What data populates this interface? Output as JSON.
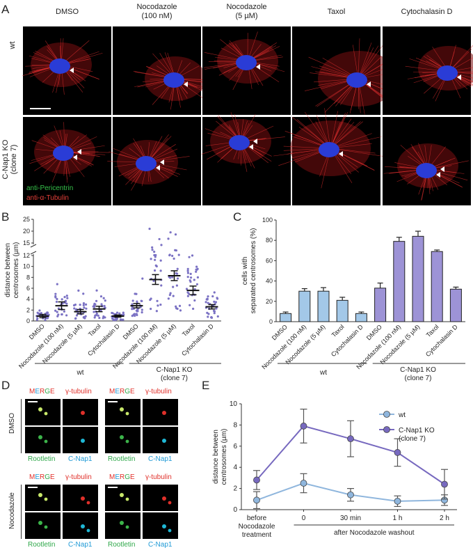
{
  "panel_a": {
    "letter": "A",
    "columns": [
      "DMSO",
      "Nocodazole\n(100 nM)",
      "Nocodazole\n(5 µM)",
      "Taxol",
      "Cytochalasin D"
    ],
    "rows": [
      "wt",
      "C-Nap1 KO\n(clone 7)"
    ],
    "legend": [
      "anti-Pericentrin",
      "anti-α-Tubulin"
    ],
    "legend_colors": [
      "#36c24a",
      "#e8403a"
    ]
  },
  "panel_b": {
    "letter": "B",
    "ylabel": "distance between\ncentrosomes (µm)",
    "group_wt": "wt",
    "group_ko": "C-Nap1 KO\n(clone 7)"
  },
  "panel_c": {
    "letter": "C",
    "ylabel": "cells with\nseparated centrosomes (%)",
    "group_wt": "wt",
    "group_ko": "C-Nap1 KO\n(clone 7)"
  },
  "panel_d": {
    "letter": "D",
    "row_dmso": "DMSO",
    "row_noco": "Nocodazole",
    "merge_letters": [
      "M",
      "E",
      "R",
      "G",
      "E"
    ],
    "merge_colors": [
      "#e0302a",
      "#1f9ad6",
      "#e0302a",
      "#2fa84a",
      "#e0302a"
    ],
    "gamma": "γ-tubulin",
    "rootletin": "Rootletin",
    "cnap1": "C-Nap1"
  },
  "panel_e": {
    "letter": "E",
    "xlabel_before": "before\nNocodazole\ntreatment",
    "xlabel_after": "after Nocodazole washout"
  },
  "chart_data": [
    {
      "type": "scatter",
      "panel": "B",
      "categories": [
        "DMSO",
        "Nocodazole (100 nM)",
        "Nocodazole (5 µM)",
        "Taxol",
        "Cytochalasin D",
        "DMSO",
        "Nocodazole (100 nM)",
        "Nocodazole (5 µM)",
        "Taxol",
        "Cytochalasin D"
      ],
      "groups": [
        "wt",
        "wt",
        "wt",
        "wt",
        "wt",
        "C-Nap1 KO (clone 7)",
        "C-Nap1 KO (clone 7)",
        "C-Nap1 KO (clone 7)",
        "C-Nap1 KO (clone 7)",
        "C-Nap1 KO (clone 7)"
      ],
      "means": [
        0.9,
        2.8,
        1.7,
        2.2,
        0.9,
        2.8,
        7.6,
        8.3,
        5.6,
        2.6
      ],
      "sem": [
        0.3,
        0.7,
        0.4,
        0.5,
        0.2,
        0.4,
        0.9,
        0.9,
        0.8,
        0.4
      ],
      "ylabel": "distance between centrosomes (µm)",
      "yticks_lower": [
        0,
        2,
        4,
        6,
        8,
        10,
        12
      ],
      "yticks_upper": [
        15,
        20,
        25
      ],
      "axis_break": [
        12,
        13
      ],
      "point_color": "#7b72c4"
    },
    {
      "type": "bar",
      "panel": "C",
      "categories": [
        "DMSO",
        "Nocodazole (100 nM)",
        "Nocodazole (5 µM)",
        "Taxol",
        "Cytochalasin D",
        "DMSO",
        "Nocodazole (100 nM)",
        "Nocodazole (5 µM)",
        "Taxol",
        "Cytochalasin D"
      ],
      "groups": [
        "wt",
        "wt",
        "wt",
        "wt",
        "wt",
        "C-Nap1 KO (clone 7)",
        "C-Nap1 KO (clone 7)",
        "C-Nap1 KO (clone 7)",
        "C-Nap1 KO (clone 7)",
        "C-Nap1 KO (clone 7)"
      ],
      "values": [
        8,
        30,
        30,
        21,
        8,
        33,
        79,
        84,
        69,
        32
      ],
      "errors": [
        1.5,
        2.5,
        3.5,
        3,
        1.5,
        5,
        4,
        5,
        1.5,
        2
      ],
      "colors": [
        "#a3c8e8",
        "#a3c8e8",
        "#a3c8e8",
        "#a3c8e8",
        "#a3c8e8",
        "#9d93d6",
        "#9d93d6",
        "#9d93d6",
        "#9d93d6",
        "#9d93d6"
      ],
      "ylabel": "cells with separated centrosomes (%)",
      "ylim": [
        0,
        100
      ],
      "yticks": [
        0,
        20,
        40,
        60,
        80,
        100
      ]
    },
    {
      "type": "line",
      "panel": "E",
      "x": [
        "before",
        "0",
        "30 min",
        "1 h",
        "2 h"
      ],
      "series": [
        {
          "name": "wt",
          "values": [
            0.9,
            2.5,
            1.4,
            0.8,
            0.9
          ],
          "errors": [
            0.8,
            0.9,
            0.6,
            0.5,
            0.5
          ],
          "color": "#8fb6dd"
        },
        {
          "name": "C-Nap1 KO\n(clone 7)",
          "values": [
            2.8,
            7.9,
            6.7,
            5.4,
            2.4
          ],
          "errors": [
            0.9,
            1.6,
            1.7,
            1.3,
            1.4
          ],
          "color": "#7769bf"
        }
      ],
      "ylabel": "distance between\ncentrosomes (µm)",
      "ylim": [
        0,
        10
      ],
      "yticks": [
        0,
        2,
        4,
        6,
        8,
        10
      ],
      "legend_position": "top-right"
    }
  ]
}
